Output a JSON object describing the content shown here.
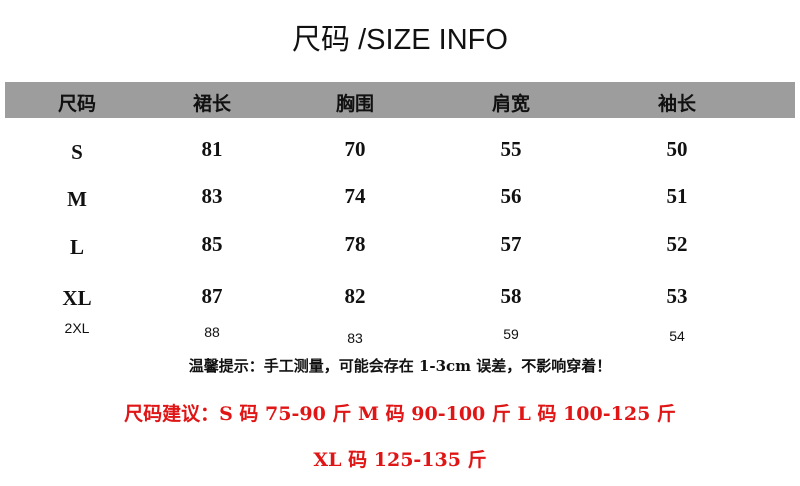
{
  "title": "尺码 /SIZE INFO",
  "table": {
    "headers": [
      "尺码",
      "裙长",
      "胸围",
      "肩宽",
      "袖长"
    ],
    "rows": [
      [
        "S",
        "81",
        "70",
        "55",
        "50"
      ],
      [
        "M",
        "83",
        "74",
        "56",
        "51"
      ],
      [
        "L",
        "85",
        "78",
        "57",
        "52"
      ],
      [
        "XL",
        "87",
        "82",
        "58",
        "53"
      ],
      [
        "2XL",
        "88",
        "83",
        "59",
        "54"
      ]
    ]
  },
  "note": "温馨提示：手工测量，可能会存在 1-3cm 误差，不影响穿着！",
  "recommendation": {
    "line1": "尺码建议：S 码 75-90 斤  M 码 90-100 斤  L 码 100-125 斤",
    "line2": "XL 码 125-135 斤",
    "color": "#e01515"
  },
  "colors": {
    "header_bg": "#9d9d9d"
  }
}
